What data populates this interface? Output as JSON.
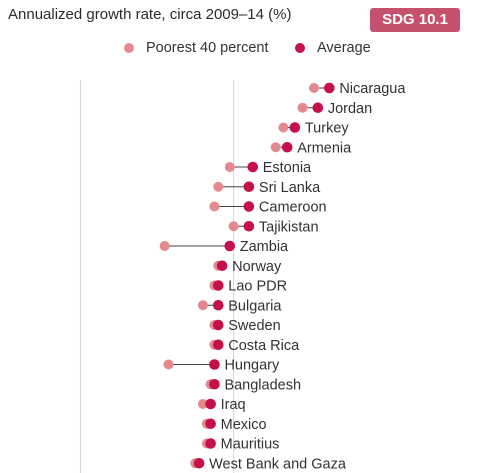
{
  "header": {
    "title": "Annualized growth rate, circa 2009–14 (%)",
    "badge": "SDG 10.1"
  },
  "colors": {
    "poorest": "#e48a8f",
    "average": "#c4114a",
    "badge": "#c5516d",
    "grid": "#d4d4d4",
    "connector": "#444444"
  },
  "chart_data": {
    "type": "scatter",
    "title": "Annualized growth rate, circa 2009–14 (%)",
    "xlabel": "",
    "ylabel": "",
    "xlim": [
      -2.1,
      10.8
    ],
    "grid": true,
    "gridlines_x": [
      0,
      4
    ],
    "legend_position": "top",
    "categories": [
      "Nicaragua",
      "Jordan",
      "Turkey",
      "Armenia",
      "Estonia",
      "Sri Lanka",
      "Cameroon",
      "Tajikistan",
      "Zambia",
      "Norway",
      "Lao PDR",
      "Bulgaria",
      "Sweden",
      "Costa Rica",
      "Hungary",
      "Bangladesh",
      "Iraq",
      "Mexico",
      "Mauritius",
      "West Bank and Gaza"
    ],
    "series": [
      {
        "name": "Poorest 40 percent",
        "values": [
          6.1,
          5.8,
          5.3,
          5.1,
          3.9,
          3.6,
          3.5,
          4.0,
          2.2,
          3.6,
          3.5,
          3.2,
          3.5,
          3.5,
          2.3,
          3.4,
          3.2,
          3.3,
          3.3,
          3.0
        ]
      },
      {
        "name": "Average",
        "values": [
          6.5,
          6.2,
          5.6,
          5.4,
          4.5,
          4.4,
          4.4,
          4.4,
          3.9,
          3.7,
          3.6,
          3.6,
          3.6,
          3.6,
          3.5,
          3.5,
          3.4,
          3.4,
          3.4,
          3.1
        ]
      }
    ]
  }
}
